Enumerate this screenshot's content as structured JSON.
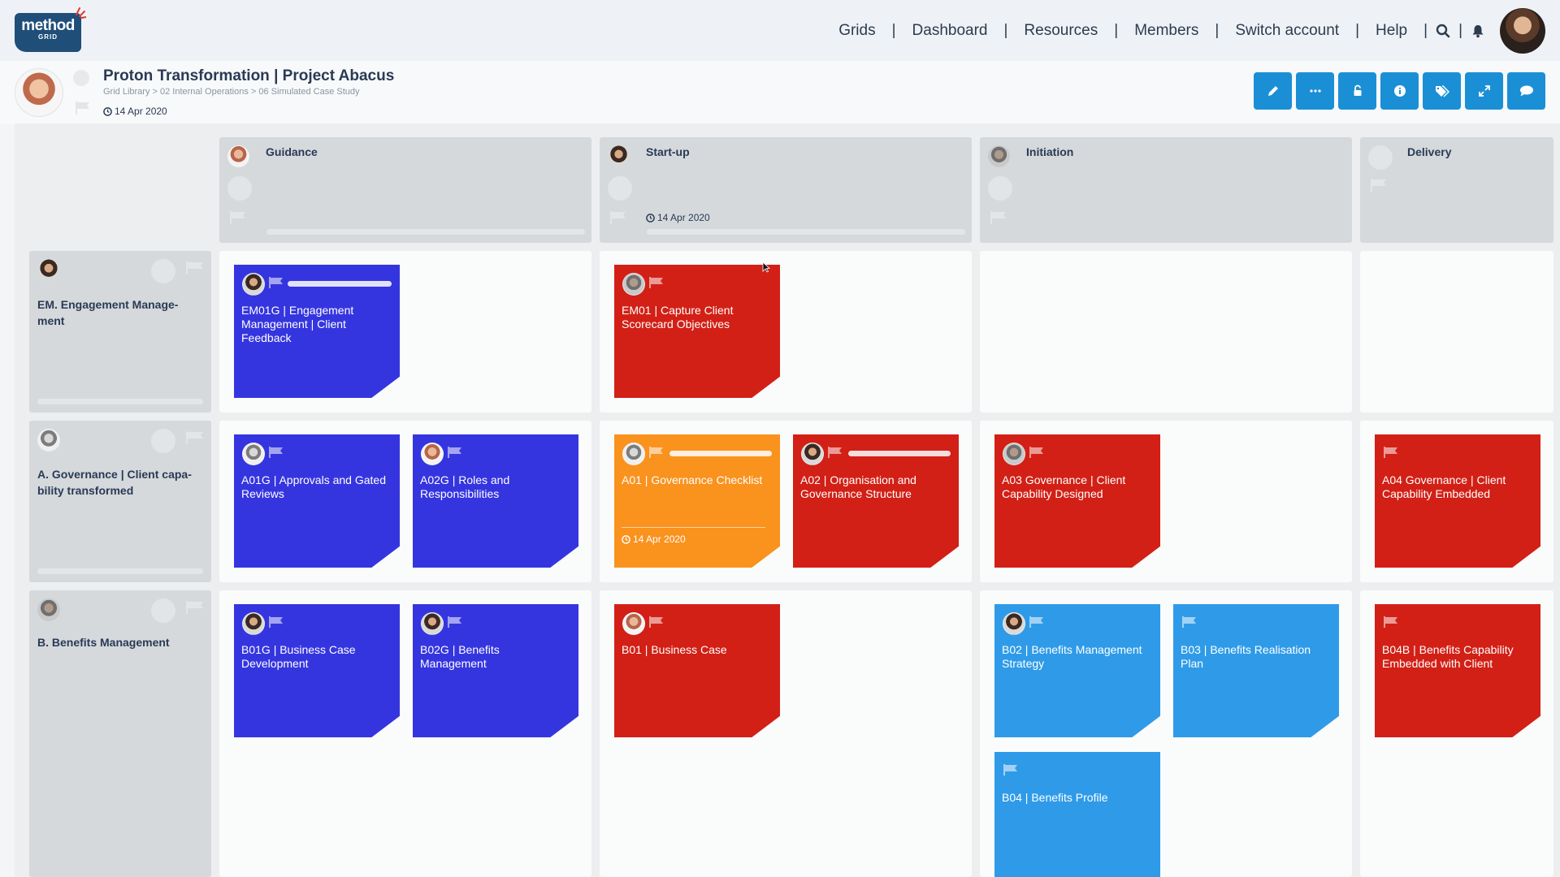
{
  "app": {
    "logo_main": "method",
    "logo_sub": "GRID"
  },
  "nav": {
    "items": [
      "Grids",
      "Dashboard",
      "Resources",
      "Members",
      "Switch account",
      "Help"
    ],
    "separator": "|",
    "icons": [
      "search-icon",
      "bell-icon"
    ]
  },
  "project": {
    "title": "Proton Transformation | Project Abacus",
    "breadcrumb": "Grid Library > 02 Internal Operations > 06 Simulated Case Study",
    "date": "14 Apr 2020"
  },
  "toolbar": {
    "buttons": [
      "edit-icon",
      "more-icon",
      "unlock-icon",
      "info-icon",
      "tags-icon",
      "expand-icon",
      "comment-icon"
    ]
  },
  "columns": [
    {
      "title": "Guidance"
    },
    {
      "title": "Start-up",
      "date": "14 Apr 2020"
    },
    {
      "title": "Initiation"
    },
    {
      "title": "Delivery"
    }
  ],
  "rows": [
    {
      "title": "EM. Engagement Manage-ment"
    },
    {
      "title": "A. Governance | Client capa-bility transformed"
    },
    {
      "title": "B. Benefits Management"
    }
  ],
  "cards": [
    {
      "title": "EM01G | Engagement Management | Client Feedback",
      "color": "#3535e0"
    },
    {
      "title": "EM01 | Capture Client Scorecard Objectives",
      "color": "#d22016"
    },
    {
      "title": "A01G | Approvals and Gated Reviews",
      "color": "#3535e0"
    },
    {
      "title": "A02G | Roles and Responsibilities",
      "color": "#3535e0"
    },
    {
      "title": "A01 | Governance Checklist",
      "date": "14 Apr 2020",
      "color": "#fa921e"
    },
    {
      "title": "A02 | Organisation and Governance Structure",
      "color": "#d22016"
    },
    {
      "title": "A03 Governance | Client Capability Designed",
      "color": "#d22016"
    },
    {
      "title": "A04 Governance | Client Capability Embedded",
      "color": "#d22016"
    },
    {
      "title": "B01G | Business Case Development",
      "color": "#3535e0"
    },
    {
      "title": "B02G | Benefits Management",
      "color": "#3535e0"
    },
    {
      "title": "B01 | Business Case",
      "color": "#d22016"
    },
    {
      "title": "B02 | Benefits Management Strategy",
      "color": "#2f9be8"
    },
    {
      "title": "B03 | Benefits Realisation Plan",
      "color": "#2f9be8"
    },
    {
      "title": "B04B | Benefits Capability Embedded with Client",
      "color": "#d22016"
    },
    {
      "title": "B04 | Benefits Profile",
      "color": "#2f9be8"
    }
  ]
}
